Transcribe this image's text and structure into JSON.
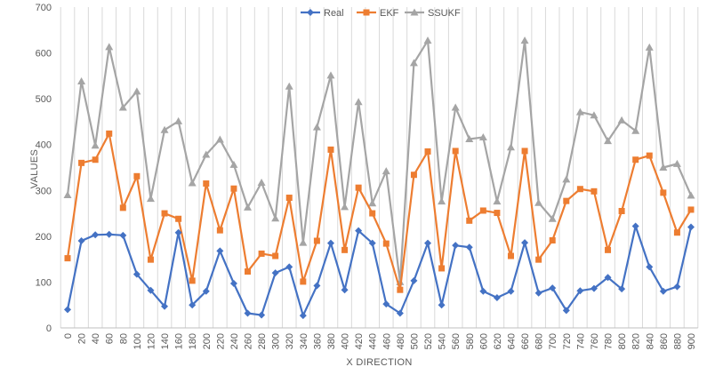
{
  "chart_data": {
    "type": "line",
    "title": "",
    "xlabel": "X DIRECTION",
    "ylabel": "VALUES",
    "ylim": [
      0,
      700
    ],
    "yticks": [
      0,
      100,
      200,
      300,
      400,
      500,
      600,
      700
    ],
    "grid": "vertical",
    "legend_position": "top",
    "x": [
      0,
      20,
      40,
      60,
      80,
      100,
      120,
      140,
      160,
      180,
      200,
      220,
      240,
      260,
      280,
      300,
      320,
      340,
      360,
      380,
      400,
      420,
      440,
      460,
      480,
      500,
      520,
      540,
      560,
      580,
      600,
      620,
      640,
      660,
      680,
      700,
      720,
      740,
      760,
      780,
      800,
      820,
      840,
      860,
      880,
      900
    ],
    "x_tick_labels": [
      "0",
      "20",
      "40",
      "60",
      "80",
      "100",
      "120",
      "140",
      "160",
      "180",
      "200",
      "220",
      "240",
      "260",
      "280",
      "300",
      "320",
      "340",
      "360",
      "380",
      "400",
      "420",
      "440",
      "460",
      "480",
      "500",
      "520",
      "540",
      "560",
      "580",
      "600",
      "620",
      "640",
      "660",
      "680",
      "700",
      "720",
      "740",
      "760",
      "780",
      "800",
      "820",
      "840",
      "860",
      "880",
      "900"
    ],
    "series": [
      {
        "name": "Real",
        "color": "#4472C4",
        "marker": "diamond",
        "values": [
          40,
          190,
          203,
          204,
          202,
          117,
          82,
          47,
          208,
          50,
          80,
          168,
          97,
          32,
          28,
          120,
          133,
          27,
          92,
          185,
          83,
          212,
          185,
          52,
          32,
          103,
          185,
          50,
          180,
          176,
          80,
          66,
          80,
          186,
          76,
          87,
          38,
          81,
          86,
          110,
          85,
          222,
          133,
          80,
          90,
          220
        ]
      },
      {
        "name": "EKF",
        "color": "#ED7D31",
        "marker": "square",
        "values": [
          152,
          360,
          367,
          424,
          262,
          331,
          149,
          250,
          238,
          103,
          315,
          213,
          304,
          123,
          162,
          157,
          284,
          101,
          190,
          389,
          170,
          306,
          250,
          184,
          83,
          334,
          385,
          130,
          386,
          234,
          256,
          251,
          157,
          386,
          149,
          191,
          277,
          303,
          298,
          170,
          255,
          367,
          376,
          295,
          208,
          258
        ]
      },
      {
        "name": "SSUKF",
        "color": "#A5A5A5",
        "marker": "triangle",
        "values": [
          290,
          538,
          398,
          613,
          481,
          516,
          282,
          432,
          451,
          316,
          378,
          411,
          356,
          263,
          317,
          239,
          527,
          186,
          438,
          551,
          264,
          493,
          272,
          342,
          100,
          578,
          627,
          276,
          481,
          412,
          416,
          276,
          394,
          627,
          273,
          238,
          324,
          471,
          464,
          408,
          453,
          430,
          612,
          350,
          358,
          289
        ]
      }
    ]
  }
}
